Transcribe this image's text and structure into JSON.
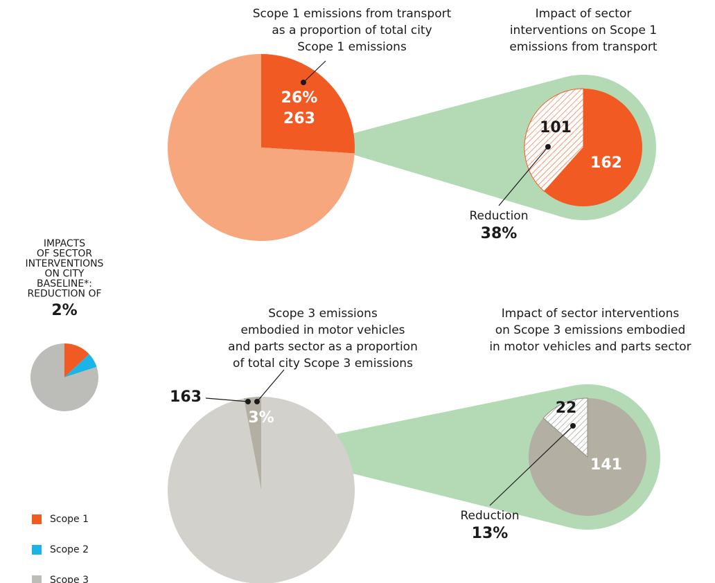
{
  "chart_data": [
    {
      "type": "pie",
      "title": [
        "Scope 1 emissions from transport",
        "as a proportion of total city",
        "Scope 1 emissions"
      ],
      "values": [
        26,
        74
      ],
      "value_labels": [
        "26%",
        null
      ],
      "amounts": [
        263,
        null
      ],
      "colors": [
        "#f15a22",
        "#f7a77e"
      ]
    },
    {
      "type": "pie",
      "title": [
        "Impact of sector",
        "interventions on Scope 1",
        "emissions from transport"
      ],
      "values": [
        162,
        101
      ],
      "hatched": [
        false,
        true
      ],
      "colors": [
        "#f15a22",
        "#f15a22"
      ],
      "ring_color": "#b3dab5",
      "annotation": "Reduction",
      "reduction": 38,
      "reduction_label": "38%"
    },
    {
      "type": "pie",
      "title": [
        "IMPACTS",
        "OF SECTOR",
        "INTERVENTIONS",
        "ON CITY",
        "BASELINE*:",
        "REDUCTION OF"
      ],
      "reduction": 2,
      "reduction_label": "2%",
      "categories": [
        "Scope 1",
        "Scope 2",
        "Scope 3"
      ],
      "values": [
        13,
        7,
        80
      ],
      "colors": [
        "#f15a22",
        "#1ab4e6",
        "#bcbcb8"
      ],
      "legend": "bottom-left"
    },
    {
      "type": "pie",
      "title": [
        "Scope 3 emissions",
        "embodied in motor vehicles",
        "and parts sector as a proportion",
        "of total city Scope 3 emissions"
      ],
      "values": [
        3,
        97
      ],
      "value_labels": [
        "3%",
        null
      ],
      "amounts": [
        163,
        null
      ],
      "colors": [
        "#b3b0a3",
        "#d2d1cb"
      ]
    },
    {
      "type": "pie",
      "title": [
        "Impact of sector interventions",
        "on Scope 3 emissions embodied",
        "in motor vehicles and parts sector"
      ],
      "values": [
        141,
        22
      ],
      "hatched": [
        false,
        true
      ],
      "colors": [
        "#b3b0a3",
        "#8f8c82"
      ],
      "ring_color": "#b3dab5",
      "annotation": "Reduction",
      "reduction": 13,
      "reduction_label": "13%"
    }
  ]
}
